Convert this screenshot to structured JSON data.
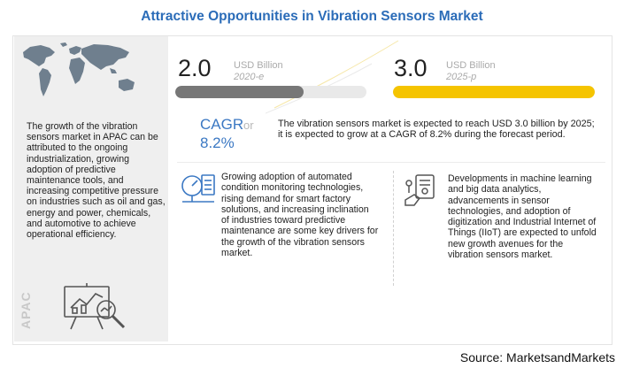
{
  "title": "Attractive Opportunities in Vibration Sensors Market",
  "market_2020": {
    "value": "2.0",
    "unit": "USD Billion",
    "year": "2020-e",
    "fill_fraction": 0.67,
    "color": "#777777"
  },
  "market_2025": {
    "value": "3.0",
    "unit": "USD Billion",
    "year": "2025-p",
    "fill_fraction": 1.0,
    "color": "#f5c400"
  },
  "cagr": {
    "label": "CAGR",
    "or": "or",
    "value": "8.2%",
    "description": "The vibration sensors market is expected to reach USD 3.0 billion by 2025; it is expected to grow at a CAGR of 8.2% during the forecast period."
  },
  "apac": {
    "label": "APAC",
    "description": "The growth of the vibration sensors market in APAC can be attributed to the ongoing industrialization, growing adoption of predictive maintenance tools, and increasing competitive pressure on industries such as oil and gas, energy and power, chemicals, and automotive to achieve operational efficiency."
  },
  "drivers": {
    "icon": "monitoring-gauge-icon",
    "text": "Growing adoption of automated condition monitoring technologies, rising demand for smart factory solutions, and increasing inclination of industries toward predictive maintenance are some key drivers for the growth of the vibration sensors market."
  },
  "opportunities": {
    "icon": "machine-learning-icon",
    "text": "Developments in machine learning and big data analytics, advancements in sensor technologies, and adoption of digitization and Industrial Internet of Things (IIoT) are expected to unfold new growth avenues for the vibration sensors market."
  },
  "source": "Source: MarketsandMarkets",
  "colors": {
    "title": "#2b6cb8",
    "cagr": "#3b78c3",
    "panel": "#efefef"
  }
}
